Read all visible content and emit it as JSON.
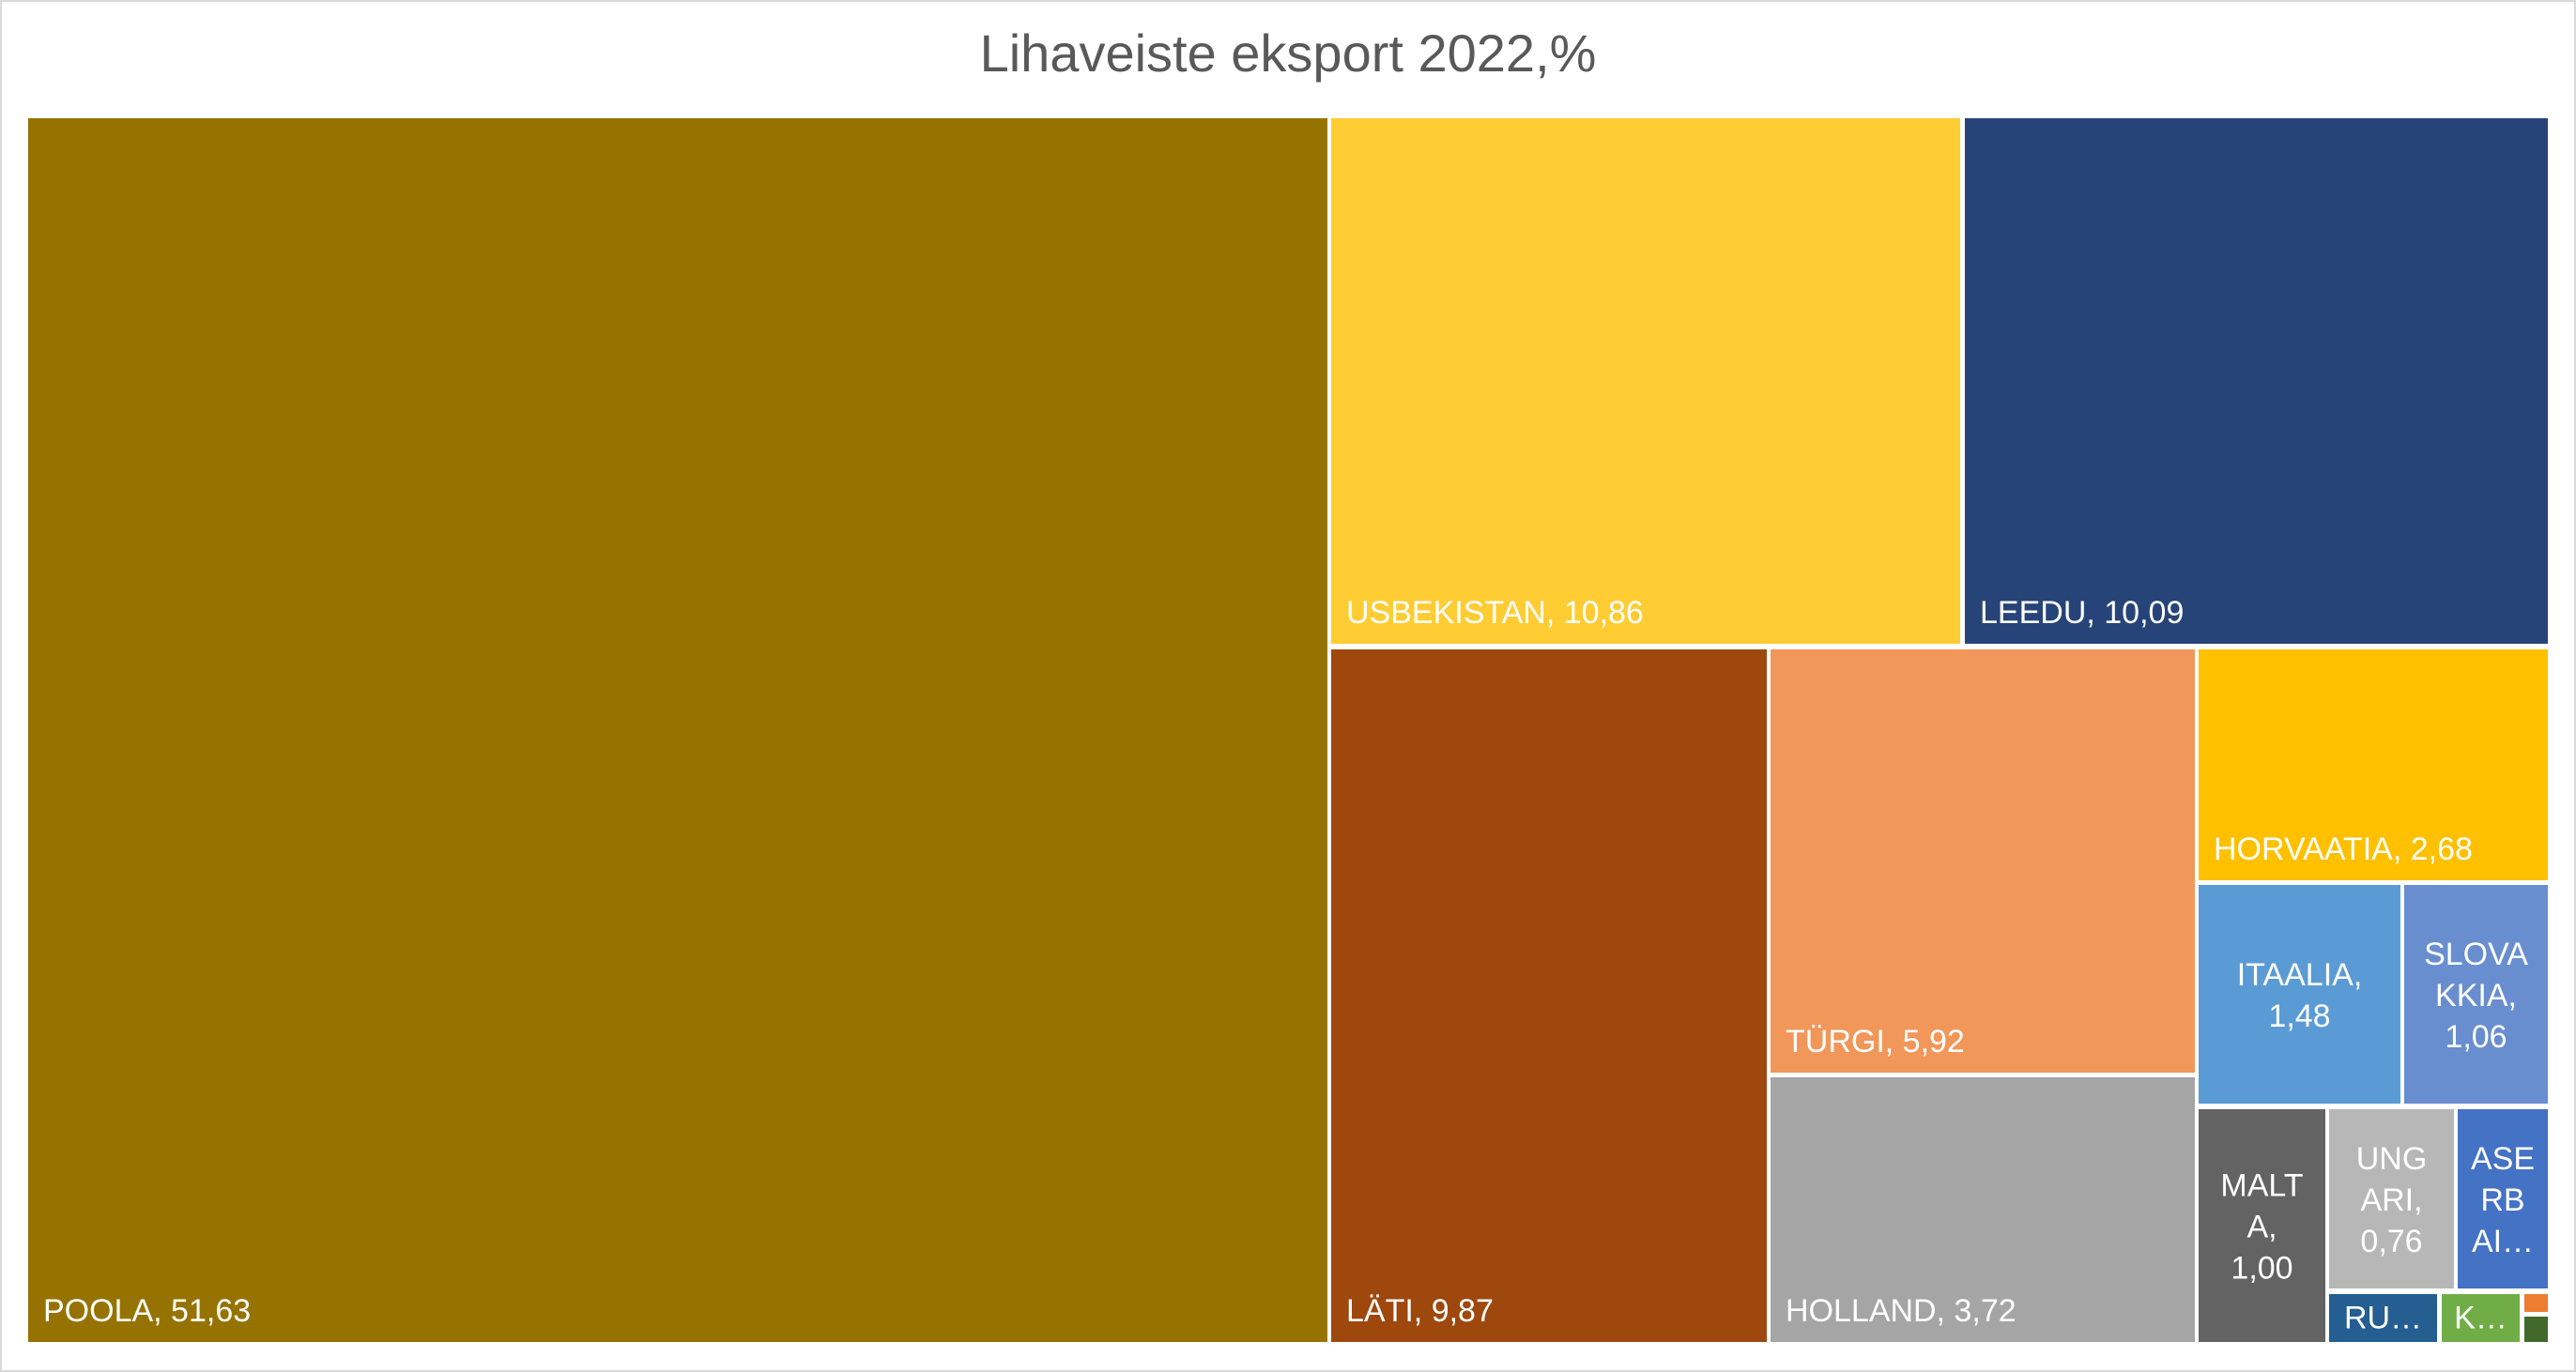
{
  "chart_data": {
    "type": "treemap",
    "title": "Lihaveiste eksport 2022,%",
    "items": [
      {
        "name": "POOLA",
        "value": "51,63",
        "color": "#967300",
        "label_lines": [
          "POOLA, 51,63"
        ],
        "align": "left"
      },
      {
        "name": "USBEKISTAN",
        "value": "10,86",
        "color": "#FFCC33",
        "label_lines": [
          "USBEKISTAN, 10,86"
        ],
        "align": "left"
      },
      {
        "name": "LEEDU",
        "value": "10,09",
        "color": "#264478",
        "label_lines": [
          "LEEDU, 10,09"
        ],
        "align": "left"
      },
      {
        "name": "LÄTI",
        "value": "9,87",
        "color": "#9E480E",
        "label_lines": [
          "LÄTI, 9,87"
        ],
        "align": "left"
      },
      {
        "name": "TÜRGI",
        "value": "5,92",
        "color": "#F1975A",
        "label_lines": [
          "TÜRGI, 5,92"
        ],
        "align": "left"
      },
      {
        "name": "HOLLAND",
        "value": "3,72",
        "color": "#A5A5A5",
        "label_lines": [
          "HOLLAND, 3,72"
        ],
        "align": "left"
      },
      {
        "name": "HORVAATIA",
        "value": "2,68",
        "color": "#FFC000",
        "label_lines": [
          "HORVAATIA, 2,68"
        ],
        "align": "left"
      },
      {
        "name": "ITAALIA",
        "value": "1,48",
        "color": "#5B9BD5",
        "label_lines": [
          "ITAALIA,",
          "1,48"
        ],
        "align": "center"
      },
      {
        "name": "SLOVAKKIA",
        "value": "1,06",
        "color": "#698ED0",
        "label_lines": [
          "SLOVA",
          "KKIA,",
          "1,06"
        ],
        "align": "center"
      },
      {
        "name": "MALTA",
        "value": "1,00",
        "color": "#636363",
        "label_lines": [
          "MALT",
          "A,",
          "1,00"
        ],
        "align": "center"
      },
      {
        "name": "UNGARI",
        "value": "0,76",
        "color": "#B7B7B7",
        "label_lines": [
          "UNG",
          "ARI,",
          "0,76"
        ],
        "align": "center"
      },
      {
        "name": "ASERBAI",
        "value": "",
        "color": "#4472C4",
        "label_lines": [
          "ASE",
          "RB",
          "AI…"
        ],
        "align": "center"
      },
      {
        "name": "RU",
        "value": "",
        "color": "#255E91",
        "label_lines": [
          "RU…"
        ],
        "align": "center"
      },
      {
        "name": "K",
        "value": "",
        "color": "#70AD47",
        "label_lines": [
          "K…"
        ],
        "align": "center"
      },
      {
        "name": "small-1",
        "value": "",
        "color": "#ED7D31",
        "label_lines": [],
        "align": "center"
      },
      {
        "name": "small-2",
        "value": "",
        "color": "#43682B",
        "label_lines": [],
        "align": "center"
      }
    ]
  }
}
